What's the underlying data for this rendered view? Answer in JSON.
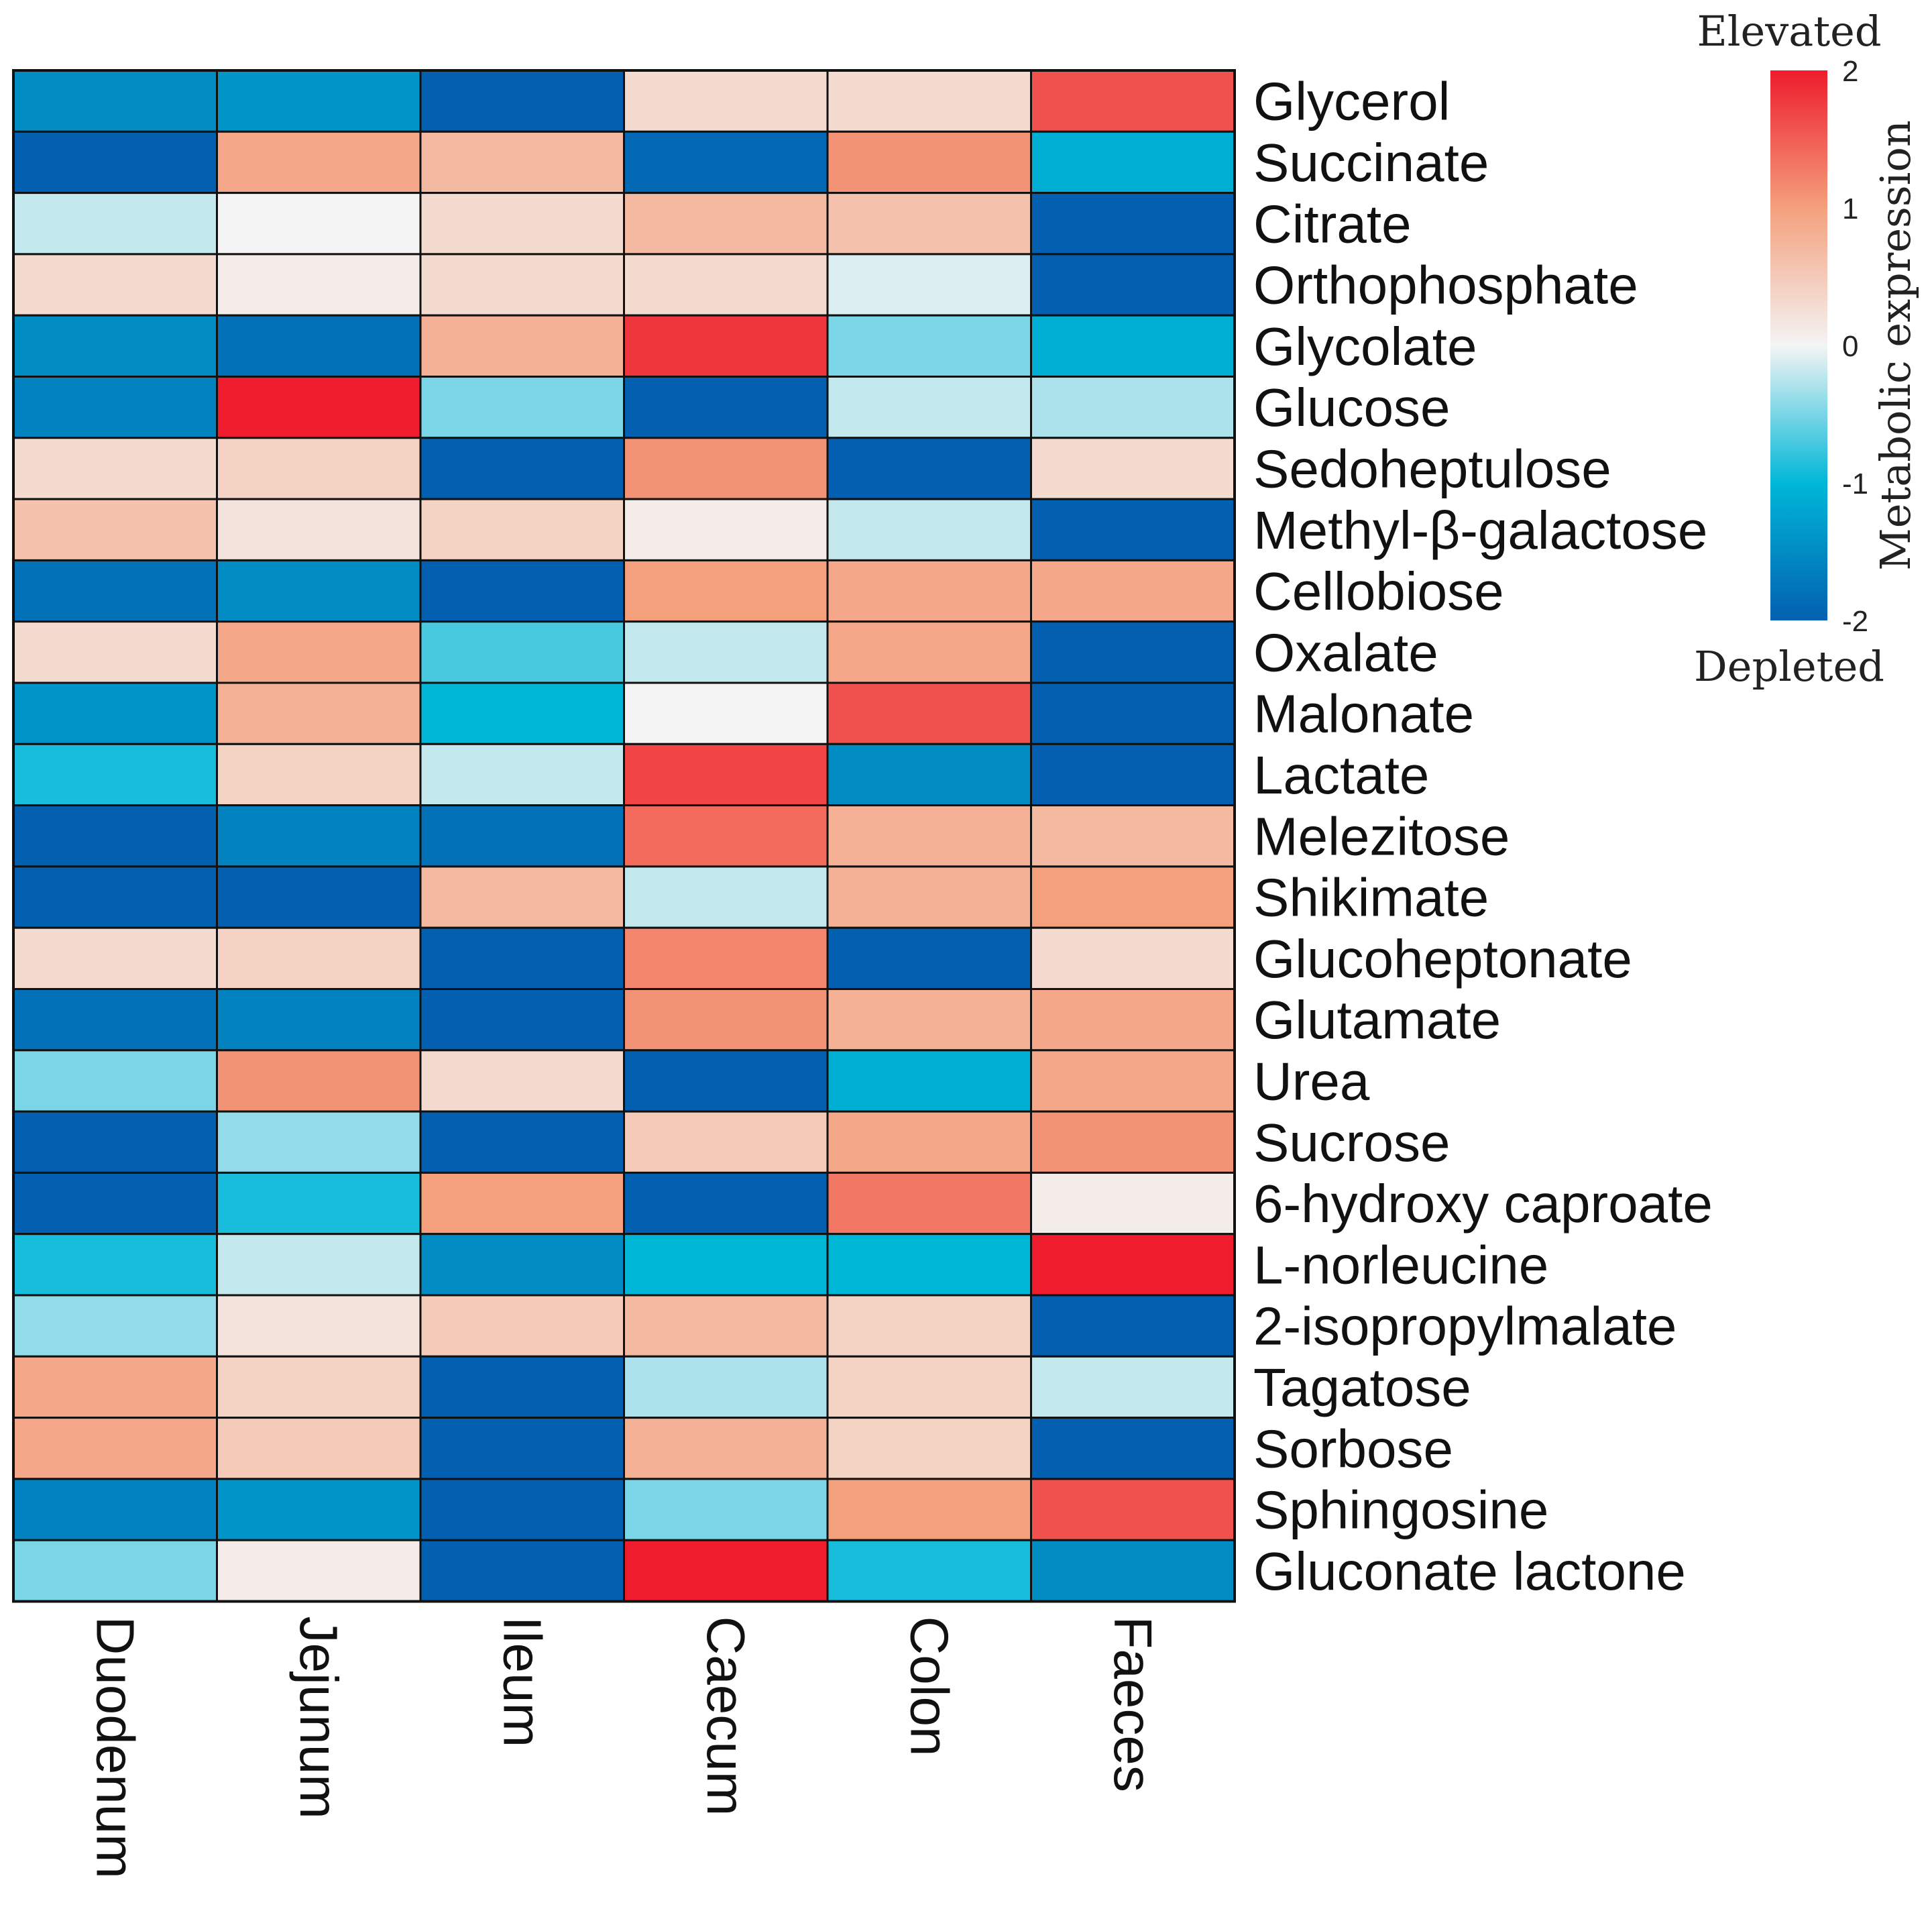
{
  "chart_data": {
    "type": "heatmap",
    "columns": [
      "Duodenum",
      "Jejunum",
      "Ileum",
      "Caecum",
      "Colon",
      "Faeces"
    ],
    "rows": [
      "Glycerol",
      "Succinate",
      "Citrate",
      "Orthophosphate",
      "Glycolate",
      "Glucose",
      "Sedoheptulose",
      "Methyl-β-galactose",
      "Cellobiose",
      "Oxalate",
      "Malonate",
      "Lactate",
      "Melezitose",
      "Shikimate",
      "Glucoheptonate",
      "Glutamate",
      "Urea",
      "Sucrose",
      "6-hydroxy caproate",
      "L-norleucine",
      "2-isopropylmalate",
      "Tagatose",
      "Sorbose",
      "Sphingosine",
      "Gluconate lactone"
    ],
    "values": [
      [
        -1.5,
        -1.4,
        -2.0,
        0.3,
        0.3,
        1.6
      ],
      [
        -2.0,
        0.9,
        0.7,
        -1.9,
        1.1,
        -1.1
      ],
      [
        -0.2,
        0.0,
        0.3,
        0.7,
        0.6,
        -2.0
      ],
      [
        0.3,
        0.1,
        0.3,
        0.3,
        -0.1,
        -2.0
      ],
      [
        -1.5,
        -1.8,
        0.8,
        1.8,
        -0.5,
        -1.1
      ],
      [
        -1.6,
        2.0,
        -0.5,
        -2.0,
        -0.2,
        -0.3
      ],
      [
        0.3,
        0.4,
        -2.0,
        1.1,
        -2.0,
        0.3
      ],
      [
        0.6,
        0.2,
        0.4,
        0.1,
        -0.2,
        -2.0
      ],
      [
        -1.8,
        -1.5,
        -2.0,
        1.0,
        0.9,
        0.9
      ],
      [
        0.3,
        0.9,
        -0.7,
        -0.2,
        0.9,
        -2.0
      ],
      [
        -1.4,
        0.8,
        -1.0,
        0.0,
        1.6,
        -2.0
      ],
      [
        -0.9,
        0.4,
        -0.2,
        1.7,
        -1.5,
        -2.0
      ],
      [
        -2.0,
        -1.6,
        -1.8,
        1.4,
        0.8,
        0.7
      ],
      [
        -2.0,
        -2.0,
        0.7,
        -0.2,
        0.8,
        1.0
      ],
      [
        0.3,
        0.4,
        -2.0,
        1.2,
        -2.0,
        0.3
      ],
      [
        -1.8,
        -1.6,
        -2.0,
        1.1,
        0.8,
        0.9
      ],
      [
        -0.5,
        1.1,
        0.3,
        -2.0,
        -1.1,
        0.9
      ],
      [
        -2.0,
        -0.4,
        -2.0,
        0.5,
        0.9,
        1.1
      ],
      [
        -2.0,
        -0.9,
        1.0,
        -2.0,
        1.3,
        0.1
      ],
      [
        -0.9,
        -0.2,
        -1.5,
        -1.0,
        -1.0,
        2.0
      ],
      [
        -0.4,
        0.2,
        0.5,
        0.7,
        0.4,
        -2.0
      ],
      [
        0.9,
        0.4,
        -2.0,
        -0.3,
        0.4,
        -0.2
      ],
      [
        0.9,
        0.5,
        -2.0,
        0.8,
        0.4,
        -2.0
      ],
      [
        -1.6,
        -1.4,
        -2.0,
        -0.5,
        1.0,
        1.6
      ],
      [
        -0.5,
        0.1,
        -2.0,
        2.0,
        -0.9,
        -1.5
      ]
    ],
    "color_scale": {
      "min": -2,
      "max": 2,
      "colors": [
        "#0360b0",
        "#00b7d8",
        "#f4f4f4",
        "#f4a07d",
        "#ee1c2d"
      ],
      "ticks": [
        2,
        1,
        0,
        -1,
        -2
      ]
    },
    "legend": {
      "title": "Metabolic expression",
      "top_label": "Elevated",
      "bottom_label": "Depleted",
      "placement": "top-right"
    }
  }
}
